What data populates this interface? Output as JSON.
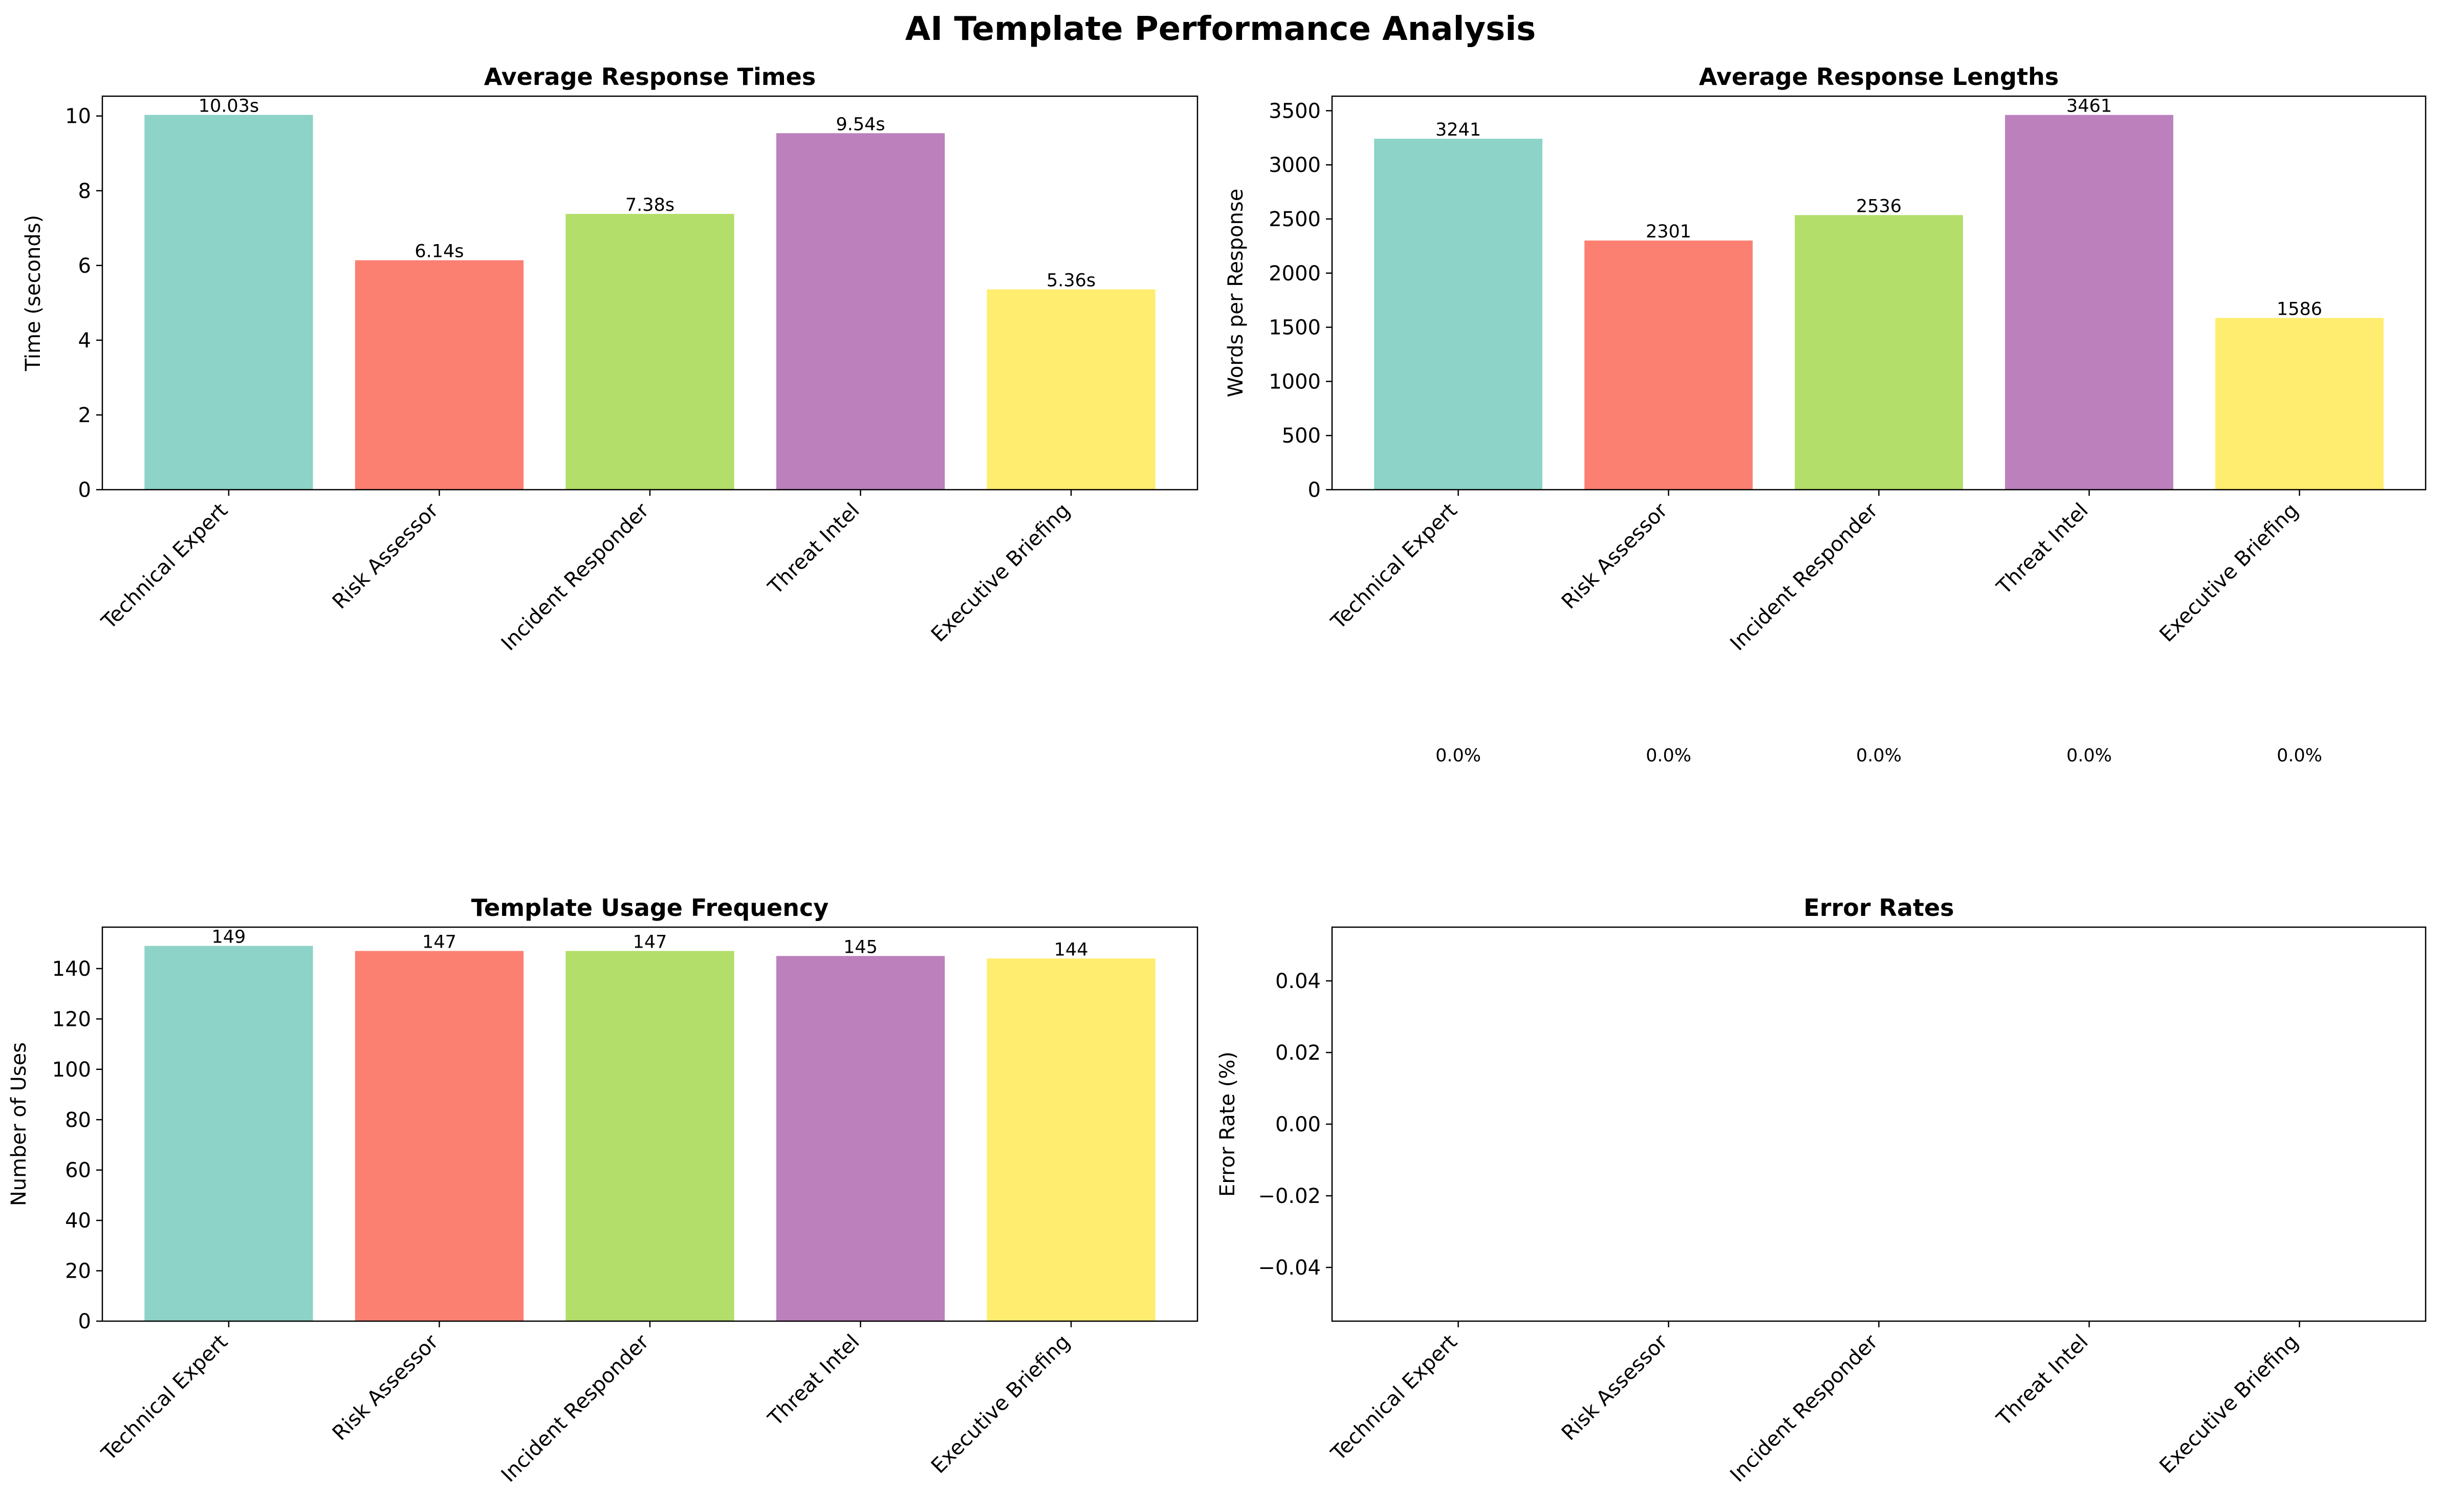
{
  "figure": {
    "title": "AI Template Performance Analysis"
  },
  "colors": [
    "#8dd3c7",
    "#fb8072",
    "#b3de69",
    "#bc80bd",
    "#ffed6f"
  ],
  "chart_data": [
    {
      "type": "bar",
      "title": "Average Response Times",
      "xlabel": "",
      "ylabel": "Time (seconds)",
      "categories": [
        "Technical Expert",
        "Risk Assessor",
        "Incident Responder",
        "Threat Intel",
        "Executive Briefing"
      ],
      "values": [
        10.03,
        6.14,
        7.38,
        9.54,
        5.36
      ],
      "value_labels": [
        "10.03s",
        "6.14s",
        "7.38s",
        "9.54s",
        "5.36s"
      ],
      "ylim": [
        0,
        10.53
      ],
      "yticks": [
        0,
        2,
        4,
        6,
        8,
        10
      ],
      "ytick_labels": [
        "0",
        "2",
        "4",
        "6",
        "8",
        "10"
      ],
      "grid": false,
      "legend": "none"
    },
    {
      "type": "bar",
      "title": "Average Response Lengths",
      "xlabel": "",
      "ylabel": "Words per Response",
      "categories": [
        "Technical Expert",
        "Risk Assessor",
        "Incident Responder",
        "Threat Intel",
        "Executive Briefing"
      ],
      "values": [
        3241,
        2301,
        2536,
        3461,
        1586
      ],
      "value_labels": [
        "3241",
        "2301",
        "2536",
        "3461",
        "1586"
      ],
      "ylim": [
        0,
        3634
      ],
      "yticks": [
        0,
        500,
        1000,
        1500,
        2000,
        2500,
        3000,
        3500
      ],
      "ytick_labels": [
        "0",
        "500",
        "1000",
        "1500",
        "2000",
        "2500",
        "3000",
        "3500"
      ],
      "grid": false,
      "legend": "none"
    },
    {
      "type": "bar",
      "title": "Template Usage Frequency",
      "xlabel": "",
      "ylabel": "Number of Uses",
      "categories": [
        "Technical Expert",
        "Risk Assessor",
        "Incident Responder",
        "Threat Intel",
        "Executive Briefing"
      ],
      "values": [
        149,
        147,
        147,
        145,
        144
      ],
      "value_labels": [
        "149",
        "147",
        "147",
        "145",
        "144"
      ],
      "ylim": [
        0,
        156.45
      ],
      "yticks": [
        0,
        20,
        40,
        60,
        80,
        100,
        120,
        140
      ],
      "ytick_labels": [
        "0",
        "20",
        "40",
        "60",
        "80",
        "100",
        "120",
        "140"
      ],
      "grid": false,
      "legend": "none"
    },
    {
      "type": "bar",
      "title": "Error Rates",
      "xlabel": "",
      "ylabel": "Error Rate (%)",
      "categories": [
        "Technical Expert",
        "Risk Assessor",
        "Incident Responder",
        "Threat Intel",
        "Executive Briefing"
      ],
      "values": [
        0.0,
        0.0,
        0.0,
        0.0,
        0.0
      ],
      "value_labels": [
        "0.0%",
        "0.0%",
        "0.0%",
        "0.0%",
        "0.0%"
      ],
      "ylim": [
        -0.055,
        0.055
      ],
      "yticks": [
        -0.04,
        -0.02,
        0.0,
        0.02,
        0.04
      ],
      "ytick_labels": [
        "−0.04",
        "−0.02",
        "0.00",
        "0.02",
        "0.04"
      ],
      "grid": false,
      "legend": "none"
    }
  ]
}
